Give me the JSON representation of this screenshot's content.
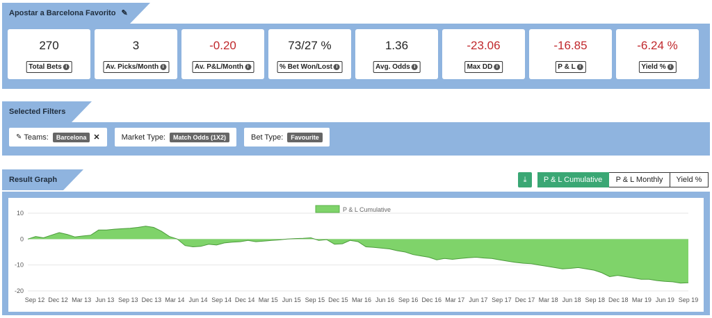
{
  "header": {
    "title": "Apostar a Barcelona Favorito"
  },
  "stats": [
    {
      "value": "270",
      "label": "Total Bets",
      "negative": false
    },
    {
      "value": "3",
      "label": "Av. Picks/Month",
      "negative": false
    },
    {
      "value": "-0.20",
      "label": "Av. P&L/Month",
      "negative": true
    },
    {
      "value": "73/27 %",
      "label": "% Bet Won/Lost",
      "negative": false
    },
    {
      "value": "1.36",
      "label": "Avg. Odds",
      "negative": false
    },
    {
      "value": "-23.06",
      "label": "Max DD",
      "negative": true
    },
    {
      "value": "-16.85",
      "label": "P & L",
      "negative": true
    },
    {
      "value": "-6.24 %",
      "label": "Yield %",
      "negative": true
    }
  ],
  "filters_section": {
    "title": "Selected Filters",
    "teams_label": "Teams:",
    "teams_value": "Barcelona",
    "market_label": "Market Type:",
    "market_value": "Match Odds (1X2)",
    "bettype_label": "Bet Type:",
    "bettype_value": "Favourite"
  },
  "graph_section": {
    "title": "Result Graph",
    "tabs": [
      "P & L Cumulative",
      "P & L Monthly",
      "Yield %"
    ],
    "active_tab": 0
  },
  "colors": {
    "accent": "#3aa774",
    "section_bg": "#8fb4df",
    "negative": "#c0282c",
    "area_fill": "#7fd36a"
  },
  "chart_data": {
    "type": "area",
    "legend": "P & L Cumulative",
    "legend_position": "top-center",
    "grid": true,
    "ylim": [
      -20,
      10
    ],
    "yticks": [
      10,
      0,
      -10,
      -20
    ],
    "xticks": [
      "Sep 12",
      "Dec 12",
      "Mar 13",
      "Jun 13",
      "Sep 13",
      "Dec 13",
      "Mar 14",
      "Jun 14",
      "Sep 14",
      "Dec 14",
      "Mar 15",
      "Jun 15",
      "Sep 15",
      "Dec 15",
      "Mar 16",
      "Jun 16",
      "Sep 16",
      "Dec 16",
      "Mar 17",
      "Jun 17",
      "Sep 17",
      "Dec 17",
      "Mar 18",
      "Jun 18",
      "Sep 18",
      "Dec 18",
      "Mar 19",
      "Jun 19",
      "Sep 19"
    ],
    "x": [
      "Sep 12",
      "Oct 12",
      "Nov 12",
      "Dec 12",
      "Jan 13",
      "Feb 13",
      "Mar 13",
      "Apr 13",
      "May 13",
      "Jun 13",
      "Jul 13",
      "Aug 13",
      "Sep 13",
      "Oct 13",
      "Nov 13",
      "Dec 13",
      "Jan 14",
      "Feb 14",
      "Mar 14",
      "Apr 14",
      "May 14",
      "Jun 14",
      "Jul 14",
      "Aug 14",
      "Sep 14",
      "Oct 14",
      "Nov 14",
      "Dec 14",
      "Jan 15",
      "Feb 15",
      "Mar 15",
      "Apr 15",
      "May 15",
      "Jun 15",
      "Jul 15",
      "Aug 15",
      "Sep 15",
      "Oct 15",
      "Nov 15",
      "Dec 15",
      "Jan 16",
      "Feb 16",
      "Mar 16",
      "Apr 16",
      "May 16",
      "Jun 16",
      "Jul 16",
      "Aug 16",
      "Sep 16",
      "Oct 16",
      "Nov 16",
      "Dec 16",
      "Jan 17",
      "Feb 17",
      "Mar 17",
      "Apr 17",
      "May 17",
      "Jun 17",
      "Jul 17",
      "Aug 17",
      "Sep 17",
      "Oct 17",
      "Nov 17",
      "Dec 17",
      "Jan 18",
      "Feb 18",
      "Mar 18",
      "Apr 18",
      "May 18",
      "Jun 18",
      "Jul 18",
      "Aug 18",
      "Sep 18",
      "Oct 18",
      "Nov 18",
      "Dec 18",
      "Jan 19",
      "Feb 19",
      "Mar 19",
      "Apr 19",
      "May 19",
      "Jun 19",
      "Jul 19",
      "Aug 19",
      "Sep 19"
    ],
    "values": [
      0,
      1,
      0.5,
      1.5,
      2.5,
      1.8,
      0.8,
      1.2,
      1.5,
      3.5,
      3.5,
      3.8,
      4,
      4.2,
      4.5,
      5,
      4.5,
      3,
      1,
      0,
      -2.5,
      -3,
      -2.8,
      -2,
      -2.3,
      -1.5,
      -1.2,
      -1,
      -0.5,
      -1,
      -0.8,
      -0.5,
      -0.3,
      0,
      0.2,
      0.3,
      0.5,
      -0.5,
      -0.2,
      -2,
      -1.8,
      -0.5,
      -1,
      -3,
      -3.2,
      -3.5,
      -3.8,
      -4.5,
      -5,
      -6,
      -6.5,
      -7,
      -8,
      -7.5,
      -7.8,
      -7.5,
      -7.2,
      -7,
      -7.3,
      -7.5,
      -8,
      -8.5,
      -9,
      -9.3,
      -9.5,
      -10,
      -10.5,
      -11,
      -11.5,
      -11.3,
      -11,
      -11.5,
      -12,
      -13,
      -14.5,
      -14,
      -14.5,
      -15,
      -15.5,
      -15.5,
      -16,
      -16.3,
      -16.5,
      -17,
      -16.85
    ]
  }
}
